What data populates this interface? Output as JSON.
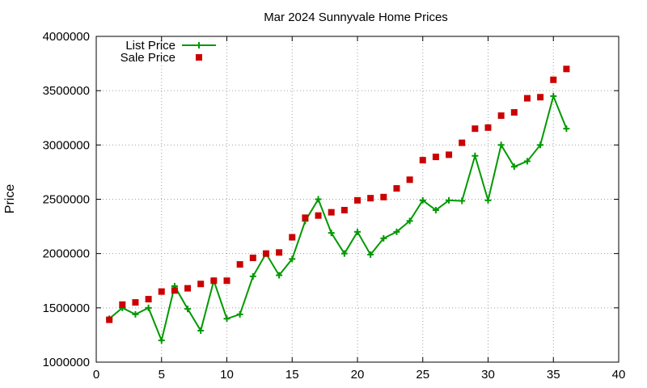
{
  "chart_data": {
    "type": "line",
    "title": "Mar 2024 Sunnyvale Home Prices",
    "xlabel": "",
    "ylabel": "Price",
    "xlim": [
      0,
      40
    ],
    "ylim": [
      1000000,
      4000000
    ],
    "xticks": [
      "0",
      "5",
      "10",
      "15",
      "20",
      "25",
      "30",
      "35",
      "40"
    ],
    "yticks": [
      "1000000",
      "1500000",
      "2000000",
      "2500000",
      "3000000",
      "3500000",
      "4000000"
    ],
    "grid": true,
    "legend_position": "top-left",
    "series": [
      {
        "name": "List Price",
        "style": "line-with-plus-markers",
        "color": "#009900",
        "x": [
          1,
          2,
          3,
          4,
          5,
          6,
          7,
          8,
          9,
          10,
          11,
          12,
          13,
          14,
          15,
          16,
          17,
          18,
          19,
          20,
          21,
          22,
          23,
          24,
          25,
          26,
          27,
          28,
          29,
          30,
          31,
          32,
          33,
          34,
          35,
          36
        ],
        "values": [
          1400000,
          1500000,
          1440000,
          1500000,
          1200000,
          1700000,
          1490000,
          1290000,
          1750000,
          1400000,
          1440000,
          1790000,
          2000000,
          1800000,
          1950000,
          2300000,
          2500000,
          2190000,
          2000000,
          2200000,
          1990000,
          2140000,
          2200000,
          2300000,
          2490000,
          2400000,
          2490000,
          2485000,
          2900000,
          2490000,
          3000000,
          2800000,
          2850000,
          3000000,
          3450000,
          3150000
        ]
      },
      {
        "name": "Sale Price",
        "style": "square-markers",
        "color": "#cc0000",
        "x": [
          1,
          2,
          3,
          4,
          5,
          6,
          7,
          8,
          9,
          10,
          11,
          12,
          13,
          14,
          15,
          16,
          17,
          18,
          19,
          20,
          21,
          22,
          23,
          24,
          25,
          26,
          27,
          28,
          29,
          30,
          31,
          32,
          33,
          34,
          35,
          36
        ],
        "values": [
          1390000,
          1530000,
          1550000,
          1580000,
          1650000,
          1660000,
          1680000,
          1720000,
          1750000,
          1750000,
          1900000,
          1960000,
          2000000,
          2010000,
          2150000,
          2330000,
          2350000,
          2380000,
          2400000,
          2490000,
          2510000,
          2520000,
          2600000,
          2680000,
          2860000,
          2890000,
          2910000,
          3020000,
          3150000,
          3160000,
          3270000,
          3300000,
          3430000,
          3440000,
          3600000,
          3700000
        ]
      }
    ]
  }
}
